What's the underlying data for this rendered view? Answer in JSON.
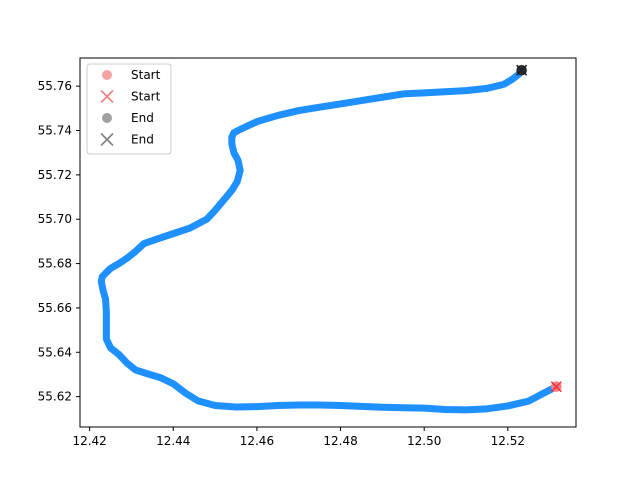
{
  "chart_data": {
    "type": "line",
    "title": "",
    "xlabel": "",
    "ylabel": "",
    "xlim": [
      12.4177,
      12.5363
    ],
    "ylim": [
      55.6063,
      55.7727
    ],
    "x_ticks": [
      12.42,
      12.44,
      12.46,
      12.48,
      12.5,
      12.52
    ],
    "x_tick_labels": [
      "12.42",
      "12.44",
      "12.46",
      "12.48",
      "12.50",
      "12.52"
    ],
    "y_ticks": [
      55.62,
      55.64,
      55.66,
      55.68,
      55.7,
      55.72,
      55.74,
      55.76
    ],
    "y_tick_labels": [
      "55.62",
      "55.64",
      "55.66",
      "55.68",
      "55.70",
      "55.72",
      "55.74",
      "55.76"
    ],
    "grid": false,
    "legend_position": "top-left",
    "series": [
      {
        "color": "#1e90ff",
        "x": [
          12.5316,
          12.528,
          12.525,
          12.52,
          12.515,
          12.51,
          12.505,
          12.5,
          12.495,
          12.49,
          12.485,
          12.48,
          12.475,
          12.47,
          12.465,
          12.46,
          12.455,
          12.45,
          12.446,
          12.443,
          12.44,
          12.437,
          12.434,
          12.431,
          12.429,
          12.427,
          12.425,
          12.424,
          12.424,
          12.424,
          12.4238,
          12.4232,
          12.4228,
          12.423,
          12.424,
          12.425,
          12.427,
          12.429,
          12.431,
          12.433,
          12.436,
          12.44,
          12.444,
          12.448,
          12.45,
          12.452,
          12.454,
          12.4553,
          12.456,
          12.4555,
          12.4545,
          12.454,
          12.454,
          12.4545,
          12.456,
          12.46,
          12.465,
          12.47,
          12.475,
          12.48,
          12.485,
          12.49,
          12.495,
          12.5,
          12.505,
          12.51,
          12.515,
          12.519,
          12.521,
          12.5225,
          12.5233
        ],
        "y": [
          55.6245,
          55.621,
          55.618,
          55.6158,
          55.6145,
          55.614,
          55.6142,
          55.6148,
          55.615,
          55.6152,
          55.6156,
          55.616,
          55.6162,
          55.6162,
          55.616,
          55.6155,
          55.6153,
          55.616,
          55.618,
          55.6215,
          55.6258,
          55.6285,
          55.6302,
          55.632,
          55.635,
          55.639,
          55.642,
          55.646,
          55.652,
          55.658,
          55.664,
          55.668,
          55.672,
          55.674,
          55.676,
          55.6778,
          55.68,
          55.6825,
          55.6855,
          55.689,
          55.691,
          55.6935,
          55.696,
          55.7,
          55.704,
          55.7085,
          55.713,
          55.717,
          55.722,
          55.7265,
          55.73,
          55.734,
          55.737,
          55.739,
          55.7405,
          55.744,
          55.7468,
          55.749,
          55.7505,
          55.752,
          55.7535,
          55.755,
          55.7565,
          55.757,
          55.7575,
          55.758,
          55.759,
          55.7608,
          55.763,
          55.7652,
          55.7672
        ]
      }
    ],
    "markers": [
      {
        "label": "Start",
        "shape": "circle",
        "color": "#ff7f7f",
        "x": 12.5316,
        "y": 55.6245
      },
      {
        "label": "Start",
        "shape": "x",
        "color": "#ff3333",
        "x": 12.5316,
        "y": 55.6245
      },
      {
        "label": "End",
        "shape": "circle",
        "color": "#222222",
        "x": 12.5233,
        "y": 55.7672
      },
      {
        "label": "End",
        "shape": "x",
        "color": "#222222",
        "x": 12.5233,
        "y": 55.7672
      }
    ],
    "legend": [
      {
        "label": "Start",
        "shape": "circle",
        "color": "#f4a3a3"
      },
      {
        "label": "Start",
        "shape": "x",
        "color": "#f08080"
      },
      {
        "label": "End",
        "shape": "circle",
        "color": "#a0a0a0"
      },
      {
        "label": "End",
        "shape": "x",
        "color": "#808080"
      }
    ]
  }
}
